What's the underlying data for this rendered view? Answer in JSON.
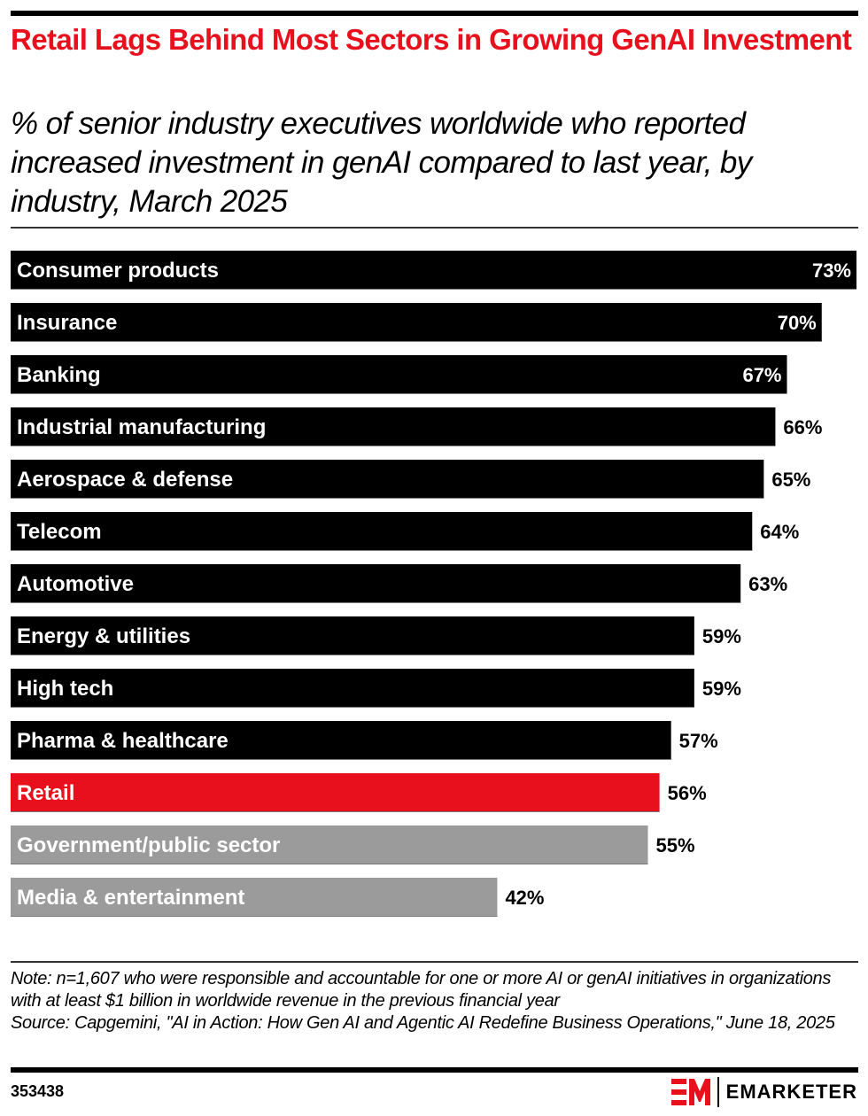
{
  "header": {
    "title": "Retail Lags Behind Most Sectors in Growing GenAI Investment",
    "subtitle": "% of senior industry executives worldwide who reported increased investment in genAI compared to last year, by industry, March 2025"
  },
  "colors": {
    "accent": "#e8101c",
    "default_bar": "#000000",
    "muted_bar": "#9b9b9b",
    "bar_text": "#ffffff",
    "value_text": "#000000"
  },
  "chart_data": {
    "type": "bar",
    "orientation": "horizontal",
    "title": "Retail Lags Behind Most Sectors in Growing GenAI Investment",
    "subtitle": "% of senior industry executives worldwide who reported increased investment in genAI compared to last year, by industry, March 2025",
    "xlabel": "",
    "ylabel": "",
    "xlim": [
      0,
      73
    ],
    "grid": false,
    "legend": "none",
    "unit": "%",
    "categories": [
      "Consumer products",
      "Insurance",
      "Banking",
      "Industrial manufacturing",
      "Aerospace & defense",
      "Telecom",
      "Automotive",
      "Energy & utilities",
      "High tech",
      "Pharma & healthcare",
      "Retail",
      "Government/public sector",
      "Media & entertainment"
    ],
    "values": [
      73,
      70,
      67,
      66,
      65,
      64,
      63,
      59,
      59,
      57,
      56,
      55,
      42
    ],
    "value_labels": [
      "73%",
      "70%",
      "67%",
      "66%",
      "65%",
      "64%",
      "63%",
      "59%",
      "59%",
      "57%",
      "56%",
      "55%",
      "42%"
    ],
    "bar_colors": [
      "#000000",
      "#000000",
      "#000000",
      "#000000",
      "#000000",
      "#000000",
      "#000000",
      "#000000",
      "#000000",
      "#000000",
      "#e8101c",
      "#9b9b9b",
      "#9b9b9b"
    ],
    "label_inside": [
      true,
      true,
      true,
      false,
      false,
      false,
      false,
      false,
      false,
      false,
      false,
      false,
      false
    ]
  },
  "footer": {
    "note": "Note: n=1,607 who were responsible and accountable for one or more AI or genAI initiatives in organizations with at least $1 billion in worldwide revenue in the previous financial year",
    "source": "Source: Capgemini, \"AI in Action: How Gen AI and Agentic AI Redefine Business Operations,\" June 18, 2025",
    "chart_id": "353438",
    "brand": "EMARKETER",
    "logo_icon": "em-logo-icon"
  }
}
